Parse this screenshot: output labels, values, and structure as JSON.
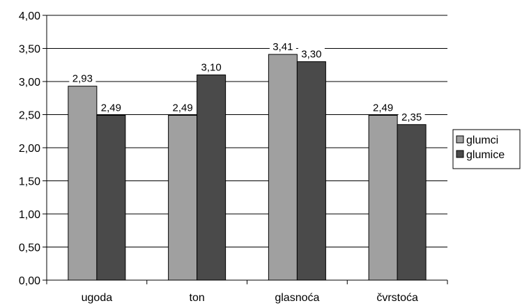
{
  "chart_data": {
    "type": "bar",
    "title": "",
    "xlabel": "",
    "ylabel": "",
    "categories": [
      "ugoda",
      "ton",
      "glasnoća",
      "čvrstoća"
    ],
    "series": [
      {
        "name": "glumci",
        "values": [
          2.93,
          2.49,
          3.41,
          2.49
        ],
        "labels": [
          "2,93",
          "2,49",
          "3,41",
          "2,49"
        ],
        "color": "#a0a0a0"
      },
      {
        "name": "glumice",
        "values": [
          2.49,
          3.1,
          3.3,
          2.35
        ],
        "labels": [
          "2,49",
          "3,10",
          "3,30",
          "2,35"
        ],
        "color": "#4a4a4a"
      }
    ],
    "ylim": [
      0,
      4
    ],
    "yticks": [
      0,
      0.5,
      1,
      1.5,
      2,
      2.5,
      3,
      3.5,
      4
    ],
    "ytick_labels": [
      "0,00",
      "0,50",
      "1,00",
      "1,50",
      "2,00",
      "2,50",
      "3,00",
      "3,50",
      "4,00"
    ],
    "grid": true,
    "legend_position": "right"
  }
}
